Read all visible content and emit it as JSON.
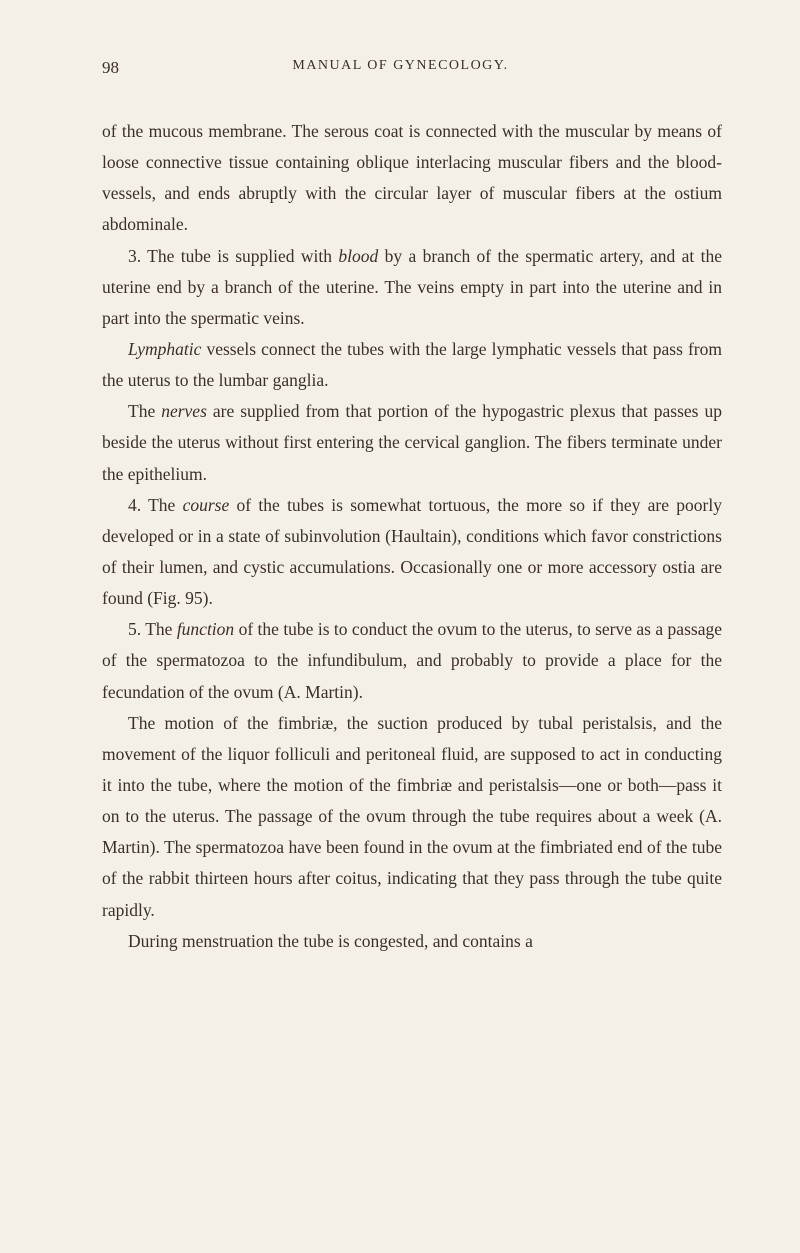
{
  "header": {
    "page_number": "98",
    "running_title": "MANUAL OF GYNECOLOGY."
  },
  "paragraphs": {
    "p1": "of the mucous membrane. The serous coat is connected with the muscular by means of loose connective tissue containing oblique interlacing muscular fibers and the blood-vessels, and ends abruptly with the circular layer of muscular fibers at the ostium abdominale.",
    "p2_pre": "3. The tube is supplied with ",
    "p2_italic": "blood",
    "p2_post": " by a branch of the spermatic artery, and at the uterine end by a branch of the uterine. The veins empty in part into the uterine and in part into the spermatic veins.",
    "p3_italic": "Lymphatic",
    "p3_post": " vessels connect the tubes with the large lymphatic vessels that pass from the uterus to the lumbar ganglia.",
    "p4_pre": "The ",
    "p4_italic": "nerves",
    "p4_post": " are supplied from that portion of the hypogastric plexus that passes up beside the uterus without first entering the cervical ganglion. The fibers terminate under the epithelium.",
    "p5_pre": "4. The ",
    "p5_italic": "course",
    "p5_post": " of the tubes is somewhat tortuous, the more so if they are poorly developed or in a state of subinvolution (Haultain), conditions which favor constrictions of their lumen, and cystic accumulations. Occasionally one or more accessory ostia are found (Fig. 95).",
    "p6_pre": "5. The ",
    "p6_italic": "function",
    "p6_post": " of the tube is to conduct the ovum to the uterus, to serve as a passage of the spermatozoa to the infundibulum, and probably to provide a place for the fecundation of the ovum (A. Martin).",
    "p7": "The motion of the fimbriæ, the suction produced by tubal peristalsis, and the movement of the liquor folliculi and peritoneal fluid, are supposed to act in conducting it into the tube, where the motion of the fimbriæ and peristalsis—one or both—pass it on to the uterus. The passage of the ovum through the tube requires about a week (A. Martin). The spermatozoa have been found in the ovum at the fimbriated end of the tube of the rabbit thirteen hours after coitus, indicating that they pass through the tube quite rapidly.",
    "p8": "During menstruation the tube is congested, and contains a"
  },
  "styles": {
    "background_color": "#f5f0e6",
    "text_color": "#3a3028",
    "body_font_size": 17.5,
    "line_height": 1.78,
    "header_font_size": 14
  }
}
